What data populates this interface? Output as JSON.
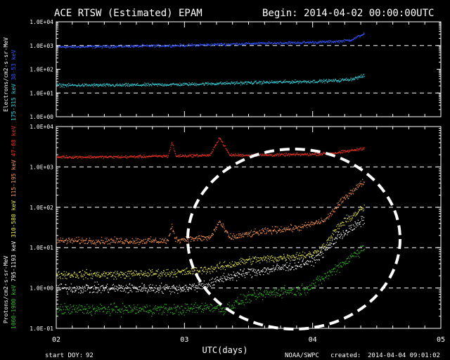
{
  "chart_data": {
    "type": "scatter",
    "title": "ACE RTSW (Estimated) EPAM",
    "begin_label": "Begin: 2014-04-02 00:00:00UTC",
    "xlabel": "UTC(days)",
    "footer": {
      "start_doy_label": "start DOY:",
      "start_doy_value": "92",
      "source": "NOAA/SWPC",
      "created_label": "created:",
      "created_value": "2014-04-04 09:01:02"
    },
    "x_ticks": [
      "02",
      "03",
      "04",
      "05"
    ],
    "xlim": [
      2,
      5
    ],
    "data_end_day": 4.4,
    "grid": "dashed horizontal lines at 1e1 and 1e3 (top), 1e0 1e1 1e2 1e3 (bottom)",
    "panels": [
      {
        "ylabel": "Electrons/cm2-s-sr-MeV",
        "y_scale": "log",
        "ylim": [
          1,
          10000
        ],
        "y_ticks": [
          "1.0E+00",
          "1.0E+01",
          "1.0E+02",
          "1.0E+03",
          "1.0E+04"
        ],
        "series": [
          {
            "name": "38-53 keV",
            "color": "#3355ff",
            "anchors": [
              [
                2.0,
                900
              ],
              [
                2.5,
                950
              ],
              [
                3.0,
                1050
              ],
              [
                3.5,
                1250
              ],
              [
                4.0,
                1400
              ],
              [
                4.2,
                1550
              ],
              [
                4.3,
                1800
              ],
              [
                4.4,
                3300
              ]
            ],
            "spread_decades": 0.08
          },
          {
            "name": "175-315 keV",
            "color": "#33d4dd",
            "anchors": [
              [
                2.0,
                22
              ],
              [
                2.5,
                22
              ],
              [
                3.0,
                24
              ],
              [
                3.5,
                28
              ],
              [
                4.0,
                32
              ],
              [
                4.2,
                35
              ],
              [
                4.3,
                40
              ],
              [
                4.4,
                55
              ]
            ],
            "spread_decades": 0.1
          }
        ]
      },
      {
        "ylabel": "Protons/cm2-s-sr-MeV",
        "y_scale": "log",
        "ylim": [
          0.1,
          10000
        ],
        "y_ticks": [
          "1.0E-01",
          "1.0E+00",
          "1.0E+01",
          "1.0E+02",
          "1.0E+03",
          "1.0E+04"
        ],
        "annotation": "dashed white circle highlighting the particle flux increase after day 03.3",
        "series": [
          {
            "name": "47-68 keV",
            "color": "#ee3322",
            "anchors": [
              [
                2.0,
                1800
              ],
              [
                2.5,
                1800
              ],
              [
                2.87,
                1900
              ],
              [
                2.9,
                4200
              ],
              [
                2.93,
                1900
              ],
              [
                3.2,
                2000
              ],
              [
                3.27,
                5500
              ],
              [
                3.35,
                2000
              ],
              [
                3.6,
                2000
              ],
              [
                4.0,
                2100
              ],
              [
                4.2,
                2300
              ],
              [
                4.3,
                2600
              ],
              [
                4.4,
                3000
              ]
            ],
            "spread_decades": 0.05
          },
          {
            "name": "115-195 keV",
            "color": "#ff9955",
            "anchors": [
              [
                2.0,
                15
              ],
              [
                2.5,
                15
              ],
              [
                2.87,
                15
              ],
              [
                2.9,
                35
              ],
              [
                2.93,
                16
              ],
              [
                3.2,
                18
              ],
              [
                3.27,
                45
              ],
              [
                3.35,
                18
              ],
              [
                3.5,
                22
              ],
              [
                3.7,
                28
              ],
              [
                3.9,
                32
              ],
              [
                4.1,
                50
              ],
              [
                4.2,
                120
              ],
              [
                4.3,
                250
              ],
              [
                4.4,
                450
              ]
            ],
            "spread_decades": 0.12
          },
          {
            "name": "310-580 keV",
            "color": "#eeee55",
            "anchors": [
              [
                2.0,
                2.2
              ],
              [
                2.5,
                2.2
              ],
              [
                3.0,
                2.5
              ],
              [
                3.2,
                3
              ],
              [
                3.3,
                3.5
              ],
              [
                3.5,
                5
              ],
              [
                3.7,
                5.5
              ],
              [
                3.9,
                6.5
              ],
              [
                4.0,
                7
              ],
              [
                4.1,
                12
              ],
              [
                4.2,
                35
              ],
              [
                4.3,
                60
              ],
              [
                4.4,
                100
              ]
            ],
            "spread_decades": 0.15
          },
          {
            "name": "795-1193 keV",
            "color": "#ffffff",
            "anchors": [
              [
                2.0,
                1.0
              ],
              [
                2.5,
                1.0
              ],
              [
                3.0,
                1.0
              ],
              [
                3.2,
                1.3
              ],
              [
                3.3,
                1.8
              ],
              [
                3.5,
                2.5
              ],
              [
                3.7,
                3
              ],
              [
                3.9,
                4
              ],
              [
                4.0,
                5
              ],
              [
                4.1,
                9
              ],
              [
                4.2,
                20
              ],
              [
                4.3,
                30
              ],
              [
                4.4,
                50
              ]
            ],
            "spread_decades": 0.18
          },
          {
            "name": "1060-1900 keV",
            "color": "#33bb22",
            "anchors": [
              [
                2.0,
                0.3
              ],
              [
                2.5,
                0.3
              ],
              [
                3.0,
                0.3
              ],
              [
                3.2,
                0.35
              ],
              [
                3.3,
                0.3
              ],
              [
                3.5,
                0.6
              ],
              [
                3.7,
                0.8
              ],
              [
                3.9,
                0.9
              ],
              [
                4.0,
                1.2
              ],
              [
                4.1,
                2
              ],
              [
                4.2,
                3.5
              ],
              [
                4.3,
                6
              ],
              [
                4.4,
                11
              ]
            ],
            "spread_decades": 0.2
          }
        ]
      }
    ]
  }
}
